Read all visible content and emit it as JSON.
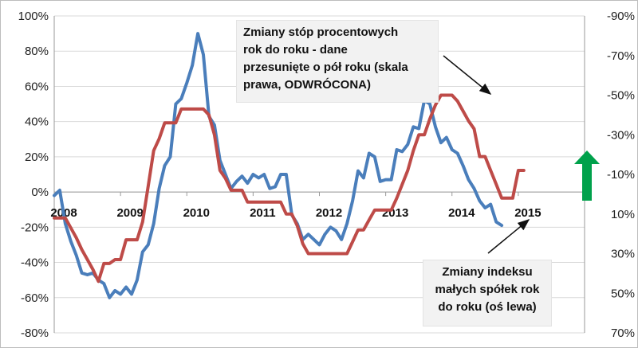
{
  "chart_data": {
    "type": "line",
    "title": "",
    "x_start": "2008-01",
    "x_end": "2015-12",
    "year_labels": [
      "2008",
      "2009",
      "2010",
      "2011",
      "2012",
      "2013",
      "2014",
      "2015"
    ],
    "left_axis": {
      "labels": [
        "100%",
        "80%",
        "60%",
        "40%",
        "20%",
        "0%",
        "-20%",
        "-40%",
        "-60%",
        "-80%"
      ],
      "ylim": [
        -80,
        100
      ],
      "unit": "%"
    },
    "right_axis": {
      "labels": [
        "-90%",
        "-70%",
        "-50%",
        "-30%",
        "-10%",
        "10%",
        "30%",
        "50%",
        "70%"
      ],
      "ylim": [
        -90,
        70
      ],
      "inverted": true,
      "unit": "%"
    },
    "grid": "horizontal",
    "series": [
      {
        "axis": "left",
        "color": "#4a7ebb",
        "points": [
          [
            "2008-01",
            -2
          ],
          [
            "2008-02",
            1
          ],
          [
            "2008-03",
            -18
          ],
          [
            "2008-04",
            -28
          ],
          [
            "2008-05",
            -36
          ],
          [
            "2008-06",
            -46
          ],
          [
            "2008-07",
            -47
          ],
          [
            "2008-08",
            -46
          ],
          [
            "2008-09",
            -50
          ],
          [
            "2008-10",
            -52
          ],
          [
            "2008-11",
            -60
          ],
          [
            "2008-12",
            -56
          ],
          [
            "2009-01",
            -58
          ],
          [
            "2009-02",
            -54
          ],
          [
            "2009-03",
            -58
          ],
          [
            "2009-04",
            -50
          ],
          [
            "2009-05",
            -34
          ],
          [
            "2009-06",
            -30
          ],
          [
            "2009-07",
            -18
          ],
          [
            "2009-08",
            2
          ],
          [
            "2009-09",
            15
          ],
          [
            "2009-10",
            20
          ],
          [
            "2009-11",
            50
          ],
          [
            "2009-12",
            53
          ],
          [
            "2010-01",
            62
          ],
          [
            "2010-02",
            72
          ],
          [
            "2010-03",
            90
          ],
          [
            "2010-04",
            78
          ],
          [
            "2010-05",
            43
          ],
          [
            "2010-06",
            38
          ],
          [
            "2010-07",
            18
          ],
          [
            "2010-08",
            10
          ],
          [
            "2010-09",
            2
          ],
          [
            "2010-10",
            6
          ],
          [
            "2010-11",
            9
          ],
          [
            "2010-12",
            5
          ],
          [
            "2011-01",
            10
          ],
          [
            "2011-02",
            8
          ],
          [
            "2011-03",
            10
          ],
          [
            "2011-04",
            2
          ],
          [
            "2011-05",
            3
          ],
          [
            "2011-06",
            10
          ],
          [
            "2011-07",
            10
          ],
          [
            "2011-08",
            -13
          ],
          [
            "2011-09",
            -18
          ],
          [
            "2011-10",
            -27
          ],
          [
            "2011-11",
            -24
          ],
          [
            "2011-12",
            -27
          ],
          [
            "2012-01",
            -30
          ],
          [
            "2012-02",
            -24
          ],
          [
            "2012-03",
            -20
          ],
          [
            "2012-04",
            -22
          ],
          [
            "2012-05",
            -27
          ],
          [
            "2012-06",
            -18
          ],
          [
            "2012-07",
            -5
          ],
          [
            "2012-08",
            12
          ],
          [
            "2012-09",
            8
          ],
          [
            "2012-10",
            22
          ],
          [
            "2012-11",
            20
          ],
          [
            "2012-12",
            6
          ],
          [
            "2013-01",
            7
          ],
          [
            "2013-02",
            7
          ],
          [
            "2013-03",
            24
          ],
          [
            "2013-04",
            23
          ],
          [
            "2013-05",
            27
          ],
          [
            "2013-06",
            37
          ],
          [
            "2013-07",
            36
          ],
          [
            "2013-08",
            52
          ],
          [
            "2013-09",
            50
          ],
          [
            "2013-10",
            37
          ],
          [
            "2013-11",
            28
          ],
          [
            "2013-12",
            31
          ],
          [
            "2014-01",
            24
          ],
          [
            "2014-02",
            22
          ],
          [
            "2014-03",
            15
          ],
          [
            "2014-04",
            7
          ],
          [
            "2014-05",
            2
          ],
          [
            "2014-06",
            -5
          ],
          [
            "2014-07",
            -9
          ],
          [
            "2014-08",
            -7
          ],
          [
            "2014-09",
            -17
          ],
          [
            "2014-10",
            -19
          ]
        ]
      },
      {
        "axis": "right",
        "color": "#be4b48",
        "points": [
          [
            "2008-01",
            12
          ],
          [
            "2008-03",
            12
          ],
          [
            "2008-04",
            17
          ],
          [
            "2008-05",
            22
          ],
          [
            "2008-06",
            28
          ],
          [
            "2008-07",
            33
          ],
          [
            "2008-08",
            38
          ],
          [
            "2008-09",
            44
          ],
          [
            "2008-10",
            35
          ],
          [
            "2008-11",
            35
          ],
          [
            "2008-12",
            33
          ],
          [
            "2009-01",
            33
          ],
          [
            "2009-02",
            23
          ],
          [
            "2009-03",
            23
          ],
          [
            "2009-04",
            23
          ],
          [
            "2009-05",
            14
          ],
          [
            "2009-06",
            -4
          ],
          [
            "2009-07",
            -22
          ],
          [
            "2009-08",
            -28
          ],
          [
            "2009-09",
            -36
          ],
          [
            "2009-10",
            -36
          ],
          [
            "2009-11",
            -36
          ],
          [
            "2009-12",
            -43
          ],
          [
            "2010-04",
            -43
          ],
          [
            "2010-05",
            -40
          ],
          [
            "2010-06",
            -30
          ],
          [
            "2010-07",
            -12
          ],
          [
            "2010-08",
            -8
          ],
          [
            "2010-09",
            -2
          ],
          [
            "2010-11",
            -2
          ],
          [
            "2010-12",
            4
          ],
          [
            "2011-06",
            4
          ],
          [
            "2011-07",
            10
          ],
          [
            "2011-08",
            10
          ],
          [
            "2011-09",
            16
          ],
          [
            "2011-10",
            25
          ],
          [
            "2011-11",
            30
          ],
          [
            "2012-06",
            30
          ],
          [
            "2012-07",
            24
          ],
          [
            "2012-08",
            18
          ],
          [
            "2012-09",
            18
          ],
          [
            "2012-10",
            13
          ],
          [
            "2012-11",
            8
          ],
          [
            "2012-12",
            8
          ],
          [
            "2013-02",
            8
          ],
          [
            "2013-03",
            2
          ],
          [
            "2013-04",
            -5
          ],
          [
            "2013-05",
            -12
          ],
          [
            "2013-06",
            -22
          ],
          [
            "2013-07",
            -30
          ],
          [
            "2013-08",
            -30
          ],
          [
            "2013-09",
            -38
          ],
          [
            "2013-10",
            -45
          ],
          [
            "2013-11",
            -50
          ],
          [
            "2014-01",
            -50
          ],
          [
            "2014-02",
            -47
          ],
          [
            "2014-03",
            -42
          ],
          [
            "2014-04",
            -37
          ],
          [
            "2014-05",
            -33
          ],
          [
            "2014-06",
            -19
          ],
          [
            "2014-07",
            -19
          ],
          [
            "2014-08",
            -12
          ],
          [
            "2014-09",
            -5
          ],
          [
            "2014-10",
            2
          ],
          [
            "2014-12",
            2
          ],
          [
            "2015-01",
            -12
          ],
          [
            "2015-02",
            -12
          ]
        ]
      }
    ],
    "annotations": [
      {
        "lines": [
          "Zmiany stóp procentowych",
          "rok do roku - dane",
          "przesunięte o pół roku (skala",
          "prawa, ODWRÓCONA)"
        ]
      },
      {
        "lines": [
          "Zmiany indeksu",
          "małych spółek rok",
          "do roku (oś lewa)"
        ]
      }
    ],
    "up_arrow_color": "#00a14b"
  }
}
